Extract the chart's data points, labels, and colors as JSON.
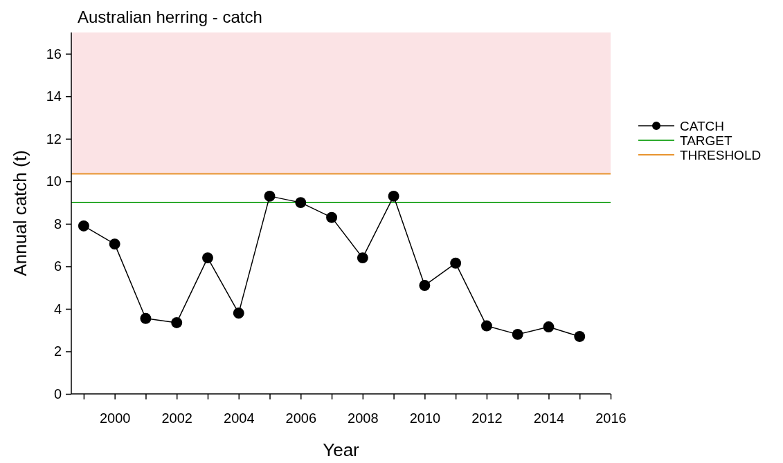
{
  "chart_data": {
    "type": "line",
    "title": "Australian herring - catch",
    "xlabel": "Year",
    "ylabel": "Annual catch (t)",
    "x": [
      1999,
      2000,
      2001,
      2002,
      2003,
      2004,
      2005,
      2006,
      2007,
      2008,
      2009,
      2010,
      2011,
      2012,
      2013,
      2014,
      2015
    ],
    "series": [
      {
        "name": "CATCH",
        "color": "#000000",
        "values": [
          7.9,
          7.05,
          3.55,
          3.35,
          6.4,
          3.8,
          9.3,
          9.0,
          8.3,
          6.4,
          9.3,
          5.1,
          6.15,
          3.2,
          2.8,
          3.15,
          2.7
        ]
      }
    ],
    "marker": "circle",
    "line_style": "solid",
    "xlim": [
      1998.6,
      2016
    ],
    "ylim": [
      0,
      17
    ],
    "xticks": [
      {
        "value": 1999,
        "label": null
      },
      2000,
      {
        "value": 2001,
        "label": null
      },
      2002,
      {
        "value": 2003,
        "label": null
      },
      2004,
      {
        "value": 2005,
        "label": null
      },
      2006,
      {
        "value": 2007,
        "label": null
      },
      2008,
      {
        "value": 2009,
        "label": null
      },
      2010,
      {
        "value": 2011,
        "label": null
      },
      2012,
      {
        "value": 2013,
        "label": null
      },
      2014,
      {
        "value": 2015,
        "label": null
      },
      2016
    ],
    "yticks": [
      0,
      2,
      4,
      6,
      8,
      10,
      12,
      14,
      16
    ],
    "ref_lines": [
      {
        "axis": "y",
        "value": 9.0,
        "label": "TARGET",
        "color": "#2eaa2e"
      },
      {
        "axis": "y",
        "value": 10.35,
        "label": "THRESHOLD",
        "color": "#e8942e"
      }
    ],
    "bands": [
      {
        "axis": "y",
        "from": 10.35,
        "to": 17,
        "color": "#fbe3e5"
      }
    ],
    "grid": false,
    "legend": "right"
  }
}
